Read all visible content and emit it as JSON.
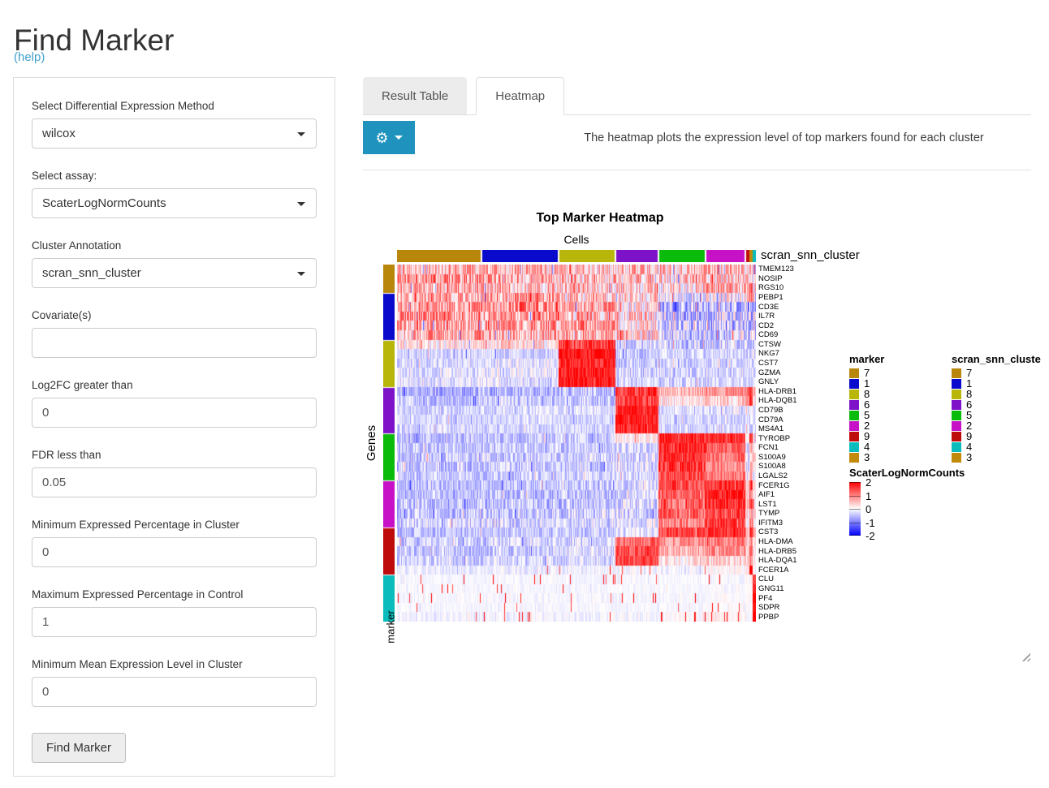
{
  "page": {
    "title": "Find Marker",
    "help_label": "(help)"
  },
  "sidebar": {
    "fields": [
      {
        "type": "select",
        "label": "Select Differential Expression Method",
        "value": "wilcox"
      },
      {
        "type": "select",
        "label": "Select assay:",
        "value": "ScaterLogNormCounts"
      },
      {
        "type": "select",
        "label": "Cluster Annotation",
        "value": "scran_snn_cluster"
      },
      {
        "type": "text",
        "label": "Covariate(s)",
        "value": ""
      },
      {
        "type": "text",
        "label": "Log2FC greater than",
        "value": "0"
      },
      {
        "type": "text",
        "label": "FDR less than",
        "value": "0.05"
      },
      {
        "type": "text",
        "label": "Minimum Expressed Percentage in Cluster",
        "value": "0"
      },
      {
        "type": "text",
        "label": "Maximum Expressed Percentage in Control",
        "value": "1"
      },
      {
        "type": "text",
        "label": "Minimum Mean Expression Level in Cluster",
        "value": "0"
      }
    ],
    "submit_label": "Find Marker"
  },
  "tabs": {
    "result_label": "Result Table",
    "heatmap_label": "Heatmap"
  },
  "toolbar": {
    "caption": "The heatmap plots the expression level of top markers found for each cluster",
    "gear_icon": "⚙",
    "button_color": "#1F93BE"
  },
  "chart_data": {
    "type": "heatmap",
    "title": "Top Marker Heatmap",
    "xlabel": "Cells",
    "ylabel": "Genes",
    "column_annotation_label": "scran_snn_cluster",
    "row_annotation_label": "marker",
    "colorbar": {
      "title": "ScaterLogNormCounts",
      "ticks": [
        "2",
        "1",
        "0",
        "-1",
        "-2"
      ],
      "high_color": "#FF0000",
      "mid_color": "#FFFFFF",
      "low_color": "#0000FF",
      "value_range": [
        -2,
        2
      ]
    },
    "cluster_colors": {
      "7": "#B8860B",
      "1": "#0A0ACD",
      "8": "#B8B50B",
      "6": "#7E12C8",
      "5": "#0BBB0B",
      "2": "#C611C6",
      "9": "#BE0B0B",
      "4": "#0BBCBC",
      "3": "#C28A0B"
    },
    "legends": [
      {
        "title": "marker"
      },
      {
        "title": "scran_snn_cluste"
      }
    ],
    "legend_order": [
      "7",
      "1",
      "8",
      "6",
      "5",
      "2",
      "9",
      "4",
      "3"
    ],
    "column_groups": [
      {
        "cluster": "7",
        "fraction": 0.236
      },
      {
        "cluster": "1",
        "fraction": 0.215
      },
      {
        "cluster": "8",
        "fraction": 0.159
      },
      {
        "cluster": "6",
        "fraction": 0.118
      },
      {
        "cluster": "5",
        "fraction": 0.132
      },
      {
        "cluster": "2",
        "fraction": 0.111
      },
      {
        "cluster": "9",
        "fraction": 0.0113
      },
      {
        "cluster": "3",
        "fraction": 0.0091
      },
      {
        "cluster": "4",
        "fraction": 0.0091
      }
    ],
    "cluster_order_note": "means arrays follow column_groups order: clusters 7,1,8,6,5,2,9,3,4",
    "rows": [
      {
        "gene": "TMEM123",
        "marker": "7",
        "means": [
          0.6,
          0.5,
          0.5,
          0.5,
          0.45,
          0.5,
          0.4,
          0.4,
          0.1
        ],
        "noise": 0.85
      },
      {
        "gene": "NOSIP",
        "marker": "7",
        "means": [
          0.8,
          0.7,
          0.55,
          0.5,
          0.4,
          0.5,
          0.4,
          0.4,
          0.1
        ],
        "noise": 0.95
      },
      {
        "gene": "RGS10",
        "marker": "7",
        "means": [
          0.55,
          0.5,
          0.45,
          0.35,
          0.3,
          0.55,
          0.4,
          1.3,
          0.1
        ],
        "noise": 0.85
      },
      {
        "gene": "PEBP1",
        "marker": "1",
        "means": [
          0.6,
          0.7,
          0.45,
          0.3,
          -0.15,
          -0.05,
          0.2,
          1.2,
          -0.1
        ],
        "noise": 0.8
      },
      {
        "gene": "CD3E",
        "marker": "1",
        "means": [
          0.7,
          0.85,
          0.6,
          0.2,
          -0.55,
          -0.5,
          -0.4,
          -0.5,
          -0.4
        ],
        "noise": 0.85
      },
      {
        "gene": "IL7R",
        "marker": "1",
        "means": [
          0.8,
          0.8,
          0.45,
          0.35,
          -0.4,
          -0.35,
          -0.3,
          -0.4,
          -0.3
        ],
        "noise": 0.95
      },
      {
        "gene": "CD2",
        "marker": "1",
        "means": [
          0.6,
          0.7,
          0.8,
          0.25,
          -0.4,
          -0.4,
          -0.3,
          -0.4,
          -0.3
        ],
        "noise": 0.85
      },
      {
        "gene": "CD69",
        "marker": "1",
        "means": [
          0.65,
          0.6,
          0.6,
          0.35,
          -0.3,
          -0.25,
          -0.2,
          -0.3,
          -0.2
        ],
        "noise": 0.85
      },
      {
        "gene": "CTSW",
        "marker": "8",
        "means": [
          0.15,
          0.25,
          1.5,
          -0.4,
          -0.4,
          -0.3,
          -0.3,
          -0.3,
          -0.2
        ],
        "noise": 0.6
      },
      {
        "gene": "NKG7",
        "marker": "8",
        "means": [
          -0.3,
          -0.25,
          1.9,
          -0.4,
          -0.35,
          -0.3,
          -0.3,
          -0.3,
          -0.2
        ],
        "noise": 0.45
      },
      {
        "gene": "CST7",
        "marker": "8",
        "means": [
          -0.3,
          -0.2,
          1.7,
          -0.4,
          -0.35,
          -0.3,
          -0.3,
          -0.3,
          -0.2
        ],
        "noise": 0.45
      },
      {
        "gene": "GZMA",
        "marker": "8",
        "means": [
          -0.25,
          -0.2,
          1.8,
          -0.35,
          -0.3,
          -0.3,
          -0.3,
          -0.3,
          -0.2
        ],
        "noise": 0.5
      },
      {
        "gene": "GNLY",
        "marker": "8",
        "means": [
          -0.2,
          -0.25,
          1.9,
          -0.3,
          -0.3,
          -0.3,
          -0.3,
          -0.3,
          -0.2
        ],
        "noise": 0.45
      },
      {
        "gene": "HLA-DRB1",
        "marker": "6",
        "means": [
          -0.7,
          -0.6,
          -0.5,
          1.6,
          0.55,
          0.9,
          1.2,
          1.6,
          0.2
        ],
        "noise": 0.5
      },
      {
        "gene": "HLA-DQB1",
        "marker": "6",
        "means": [
          -0.45,
          -0.4,
          -0.4,
          1.5,
          0.15,
          0.35,
          0.8,
          1.6,
          0.1
        ],
        "noise": 0.5
      },
      {
        "gene": "CD79B",
        "marker": "6",
        "means": [
          -0.35,
          -0.3,
          -0.3,
          1.7,
          -0.3,
          -0.25,
          -0.2,
          -0.2,
          -0.2
        ],
        "noise": 0.4
      },
      {
        "gene": "CD79A",
        "marker": "6",
        "means": [
          -0.3,
          -0.3,
          -0.3,
          1.8,
          -0.3,
          -0.3,
          -0.25,
          -0.25,
          -0.2
        ],
        "noise": 0.35
      },
      {
        "gene": "MS4A1",
        "marker": "6",
        "means": [
          -0.3,
          -0.3,
          -0.3,
          1.7,
          -0.3,
          -0.3,
          -0.25,
          -0.25,
          -0.2
        ],
        "noise": 0.4
      },
      {
        "gene": "TYROBP",
        "marker": "5",
        "means": [
          -0.5,
          -0.5,
          -0.4,
          0.15,
          1.7,
          1.6,
          0.3,
          1.5,
          0.5
        ],
        "noise": 0.45
      },
      {
        "gene": "FCN1",
        "marker": "5",
        "means": [
          -0.45,
          -0.4,
          -0.4,
          -0.3,
          1.6,
          1.2,
          -0.2,
          0.6,
          0.2
        ],
        "noise": 0.45
      },
      {
        "gene": "S100A9",
        "marker": "5",
        "means": [
          -0.45,
          -0.4,
          -0.4,
          -0.3,
          1.7,
          1.1,
          -0.2,
          0.5,
          0.3
        ],
        "noise": 0.55
      },
      {
        "gene": "S100A8",
        "marker": "5",
        "means": [
          -0.45,
          -0.4,
          -0.4,
          -0.3,
          1.6,
          0.9,
          -0.2,
          0.4,
          0.2
        ],
        "noise": 0.55
      },
      {
        "gene": "LGALS2",
        "marker": "5",
        "means": [
          -0.4,
          -0.4,
          -0.35,
          -0.3,
          1.4,
          1.1,
          -0.2,
          0.6,
          -0.1
        ],
        "noise": 0.45
      },
      {
        "gene": "FCER1G",
        "marker": "2",
        "means": [
          -0.5,
          -0.5,
          -0.4,
          -0.3,
          1.4,
          1.7,
          0.25,
          1.4,
          0.4
        ],
        "noise": 0.5
      },
      {
        "gene": "AIF1",
        "marker": "2",
        "means": [
          -0.5,
          -0.5,
          -0.4,
          -0.3,
          1.3,
          1.7,
          0.25,
          1.3,
          0.3
        ],
        "noise": 0.5
      },
      {
        "gene": "LST1",
        "marker": "2",
        "means": [
          -0.5,
          -0.5,
          -0.4,
          -0.3,
          1.2,
          1.7,
          0.3,
          1.3,
          0.3
        ],
        "noise": 0.55
      },
      {
        "gene": "TYMP",
        "marker": "2",
        "means": [
          -0.45,
          -0.4,
          -0.35,
          -0.3,
          1.2,
          1.4,
          0.2,
          0.9,
          0.2
        ],
        "noise": 0.55
      },
      {
        "gene": "IFITM3",
        "marker": "2",
        "means": [
          -0.35,
          -0.3,
          -0.3,
          -0.2,
          1.0,
          1.5,
          0.2,
          1.0,
          0.2
        ],
        "noise": 0.55
      },
      {
        "gene": "CST3",
        "marker": "9",
        "means": [
          -0.5,
          -0.45,
          -0.4,
          -0.2,
          1.4,
          1.6,
          0.3,
          1.6,
          0.8
        ],
        "noise": 0.45
      },
      {
        "gene": "HLA-DMA",
        "marker": "9",
        "means": [
          -0.35,
          -0.3,
          -0.3,
          1.2,
          0.8,
          1.0,
          0.4,
          0.9,
          0.1
        ],
        "noise": 0.5
      },
      {
        "gene": "HLA-DRB5",
        "marker": "9",
        "means": [
          -0.4,
          -0.35,
          -0.3,
          1.4,
          0.6,
          0.9,
          0.5,
          1.1,
          0.1
        ],
        "noise": 0.5
      },
      {
        "gene": "HLA-DQA1",
        "marker": "9",
        "means": [
          -0.35,
          -0.3,
          -0.3,
          1.5,
          0.2,
          0.3,
          0.3,
          0.9,
          0.1
        ],
        "noise": 0.45
      },
      {
        "gene": "FCER1A",
        "marker": "9",
        "means": [
          -0.15,
          -0.12,
          -0.1,
          -0.08,
          -0.1,
          0.05,
          0.1,
          2.0,
          -0.05
        ],
        "noise": 0.25,
        "spike": 0.008
      },
      {
        "gene": "CLU",
        "marker": "4",
        "means": [
          -0.06,
          -0.06,
          -0.06,
          -0.05,
          -0.05,
          -0.05,
          0,
          0.1,
          1.5
        ],
        "noise": 0.12,
        "spike": 0.02
      },
      {
        "gene": "GNG11",
        "marker": "4",
        "means": [
          -0.06,
          -0.06,
          -0.06,
          -0.05,
          -0.05,
          -0.05,
          0,
          0,
          1.8
        ],
        "noise": 0.12,
        "spike": 0.025
      },
      {
        "gene": "PF4",
        "marker": "4",
        "means": [
          -0.06,
          -0.06,
          -0.06,
          -0.05,
          -0.05,
          0,
          0,
          0,
          2.0
        ],
        "noise": 0.14,
        "spike": 0.03
      },
      {
        "gene": "SDPR",
        "marker": "4",
        "means": [
          -0.06,
          -0.06,
          -0.06,
          -0.05,
          -0.05,
          0,
          0,
          0,
          1.8
        ],
        "noise": 0.12,
        "spike": 0.025
      },
      {
        "gene": "PPBP",
        "marker": "4",
        "means": [
          -0.1,
          -0.1,
          -0.1,
          -0.05,
          0,
          0.1,
          0,
          0,
          2.0
        ],
        "noise": 0.2,
        "spike": 0.04
      }
    ]
  }
}
